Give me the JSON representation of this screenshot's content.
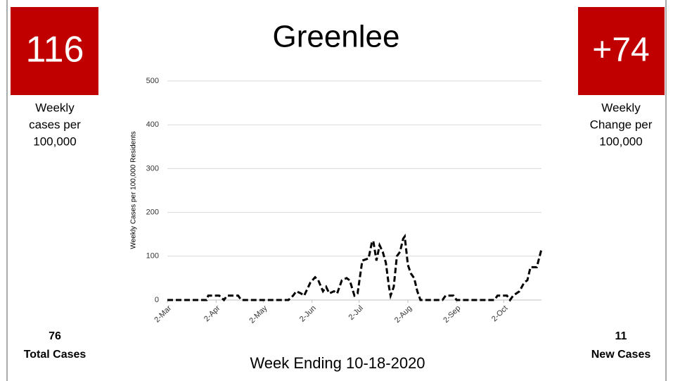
{
  "left_kpi": {
    "value": "116",
    "label_lines": [
      "Weekly",
      "cases per",
      "100,000"
    ],
    "total": "76",
    "total_label": "Total Cases"
  },
  "right_kpi": {
    "value": "+74",
    "label_lines": [
      "Weekly",
      "Change per",
      "100,000"
    ],
    "total": "11",
    "total_label": "New Cases"
  },
  "footer": "Week Ending 10-18-2020",
  "chart_data": {
    "type": "line",
    "title": "Greenlee",
    "y_label": "Weekly Cases per 100,000 Residents",
    "x": [
      0,
      25,
      26,
      33,
      36,
      38,
      45,
      47,
      77,
      80,
      82,
      85,
      87,
      91,
      94,
      96,
      99,
      101,
      103,
      106,
      108,
      111,
      114,
      116,
      119,
      121,
      124,
      128,
      130,
      131,
      133,
      135,
      137,
      139,
      141,
      142,
      144,
      146,
      148,
      150,
      151,
      153,
      155,
      157,
      159,
      161,
      175,
      177,
      182,
      184,
      208,
      210,
      216,
      218,
      220,
      224,
      227,
      229,
      231,
      235,
      238
    ],
    "series": [
      {
        "name": "Greenlee",
        "color": "#000000",
        "values": [
          0,
          0,
          10,
          10,
          0,
          10,
          10,
          0,
          0,
          10,
          20,
          15,
          10,
          40,
          52,
          45,
          20,
          30,
          15,
          20,
          15,
          45,
          50,
          45,
          10,
          15,
          90,
          95,
          130,
          135,
          90,
          125,
          110,
          85,
          30,
          10,
          30,
          100,
          110,
          140,
          145,
          80,
          60,
          50,
          20,
          0,
          0,
          10,
          10,
          0,
          0,
          10,
          10,
          0,
          10,
          20,
          40,
          45,
          75,
          75,
          116
        ]
      }
    ],
    "xlim": [
      0,
      238
    ],
    "xticks": [
      {
        "value": 0,
        "label": "2-Mar"
      },
      {
        "value": 31,
        "label": "2-Apr"
      },
      {
        "value": 61,
        "label": "2-May"
      },
      {
        "value": 92,
        "label": "2-Jun"
      },
      {
        "value": 122,
        "label": "2-Jul"
      },
      {
        "value": 153,
        "label": "2-Aug"
      },
      {
        "value": 184,
        "label": "2-Sep"
      },
      {
        "value": 214,
        "label": "2-Oct"
      }
    ],
    "ylim": [
      0,
      500
    ],
    "yticks": [
      0,
      100,
      200,
      300,
      400,
      500
    ],
    "grid": true,
    "line_style": "dashed",
    "kpi_color": "#c00000"
  }
}
